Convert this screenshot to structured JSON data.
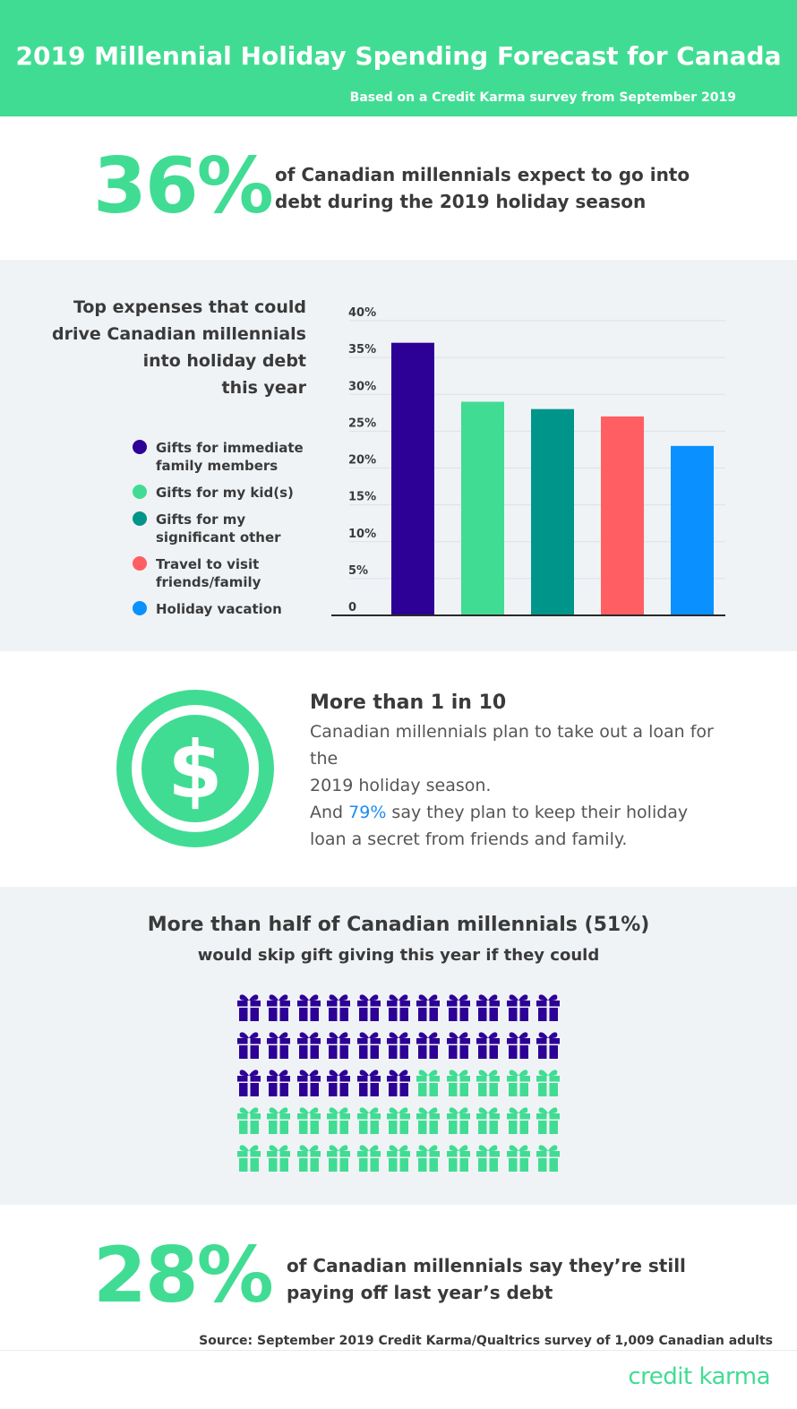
{
  "header": {
    "title": "2019 Millennial Holiday Spending Forecast for Canada",
    "subtitle": "Based on a Credit Karma survey from September 2019"
  },
  "stat1": {
    "value": "36%",
    "text_line1": "of Canadian millennials expect to go into",
    "text_line2": "debt during the 2019 holiday season"
  },
  "expenses": {
    "title_lines": [
      "Top expenses that could",
      "drive Canadian millennials",
      "into holiday debt",
      "this year"
    ],
    "legend": [
      {
        "line1": "Gifts for immediate",
        "line2": "family members"
      },
      {
        "line1": "Gifts for my kid(s)",
        "line2": ""
      },
      {
        "line1": "Gifts for my",
        "line2": "significant other"
      },
      {
        "line1": "Travel to visit",
        "line2": "friends/family"
      },
      {
        "line1": "Holiday vacation",
        "line2": ""
      }
    ]
  },
  "chart_data": {
    "type": "bar",
    "categories": [
      "Gifts for immediate family members",
      "Gifts for my kid(s)",
      "Gifts for my significant other",
      "Travel to visit friends/family",
      "Holiday vacation"
    ],
    "values": [
      37,
      29,
      28,
      27,
      23
    ],
    "colors": [
      "#2d0096",
      "#41dc93",
      "#00958a",
      "#ff5f63",
      "#0a91ff"
    ],
    "title": "Top expenses that could drive Canadian millennials into holiday debt this year",
    "ylim": [
      0,
      40
    ],
    "yticks": [
      "0",
      "5%",
      "10%",
      "15%",
      "20%",
      "25%",
      "30%",
      "35%",
      "40%"
    ],
    "grid": true,
    "legend_position": "left"
  },
  "loan": {
    "title": "More than 1 in 10",
    "line1": "Canadian millennials plan to take out a loan for the",
    "line2": "2019 holiday season.",
    "p2_prefix": "And ",
    "p2_highlight": "79%",
    "p2_suffix": " say they plan to keep their holiday",
    "p2_line2": "loan a secret from friends and family.",
    "icon": "dollar-coin-icon"
  },
  "gifts": {
    "title": "More than half of Canadian millennials (51%)",
    "subtitle": "would skip gift giving this year if they could",
    "highlighted_count": 28,
    "total_count": 55,
    "highlight_color": "#2d0096",
    "base_color": "#41dc93",
    "icon": "gift-icon"
  },
  "stat2": {
    "value": "28%",
    "text_line1": "of Canadian millennials say they’re still",
    "text_line2": "paying off last year’s debt"
  },
  "footer": {
    "source": "Source: September 2019 Credit Karma/Qualtrics survey of 1,009 Canadian adults",
    "logo": "credit karma"
  }
}
